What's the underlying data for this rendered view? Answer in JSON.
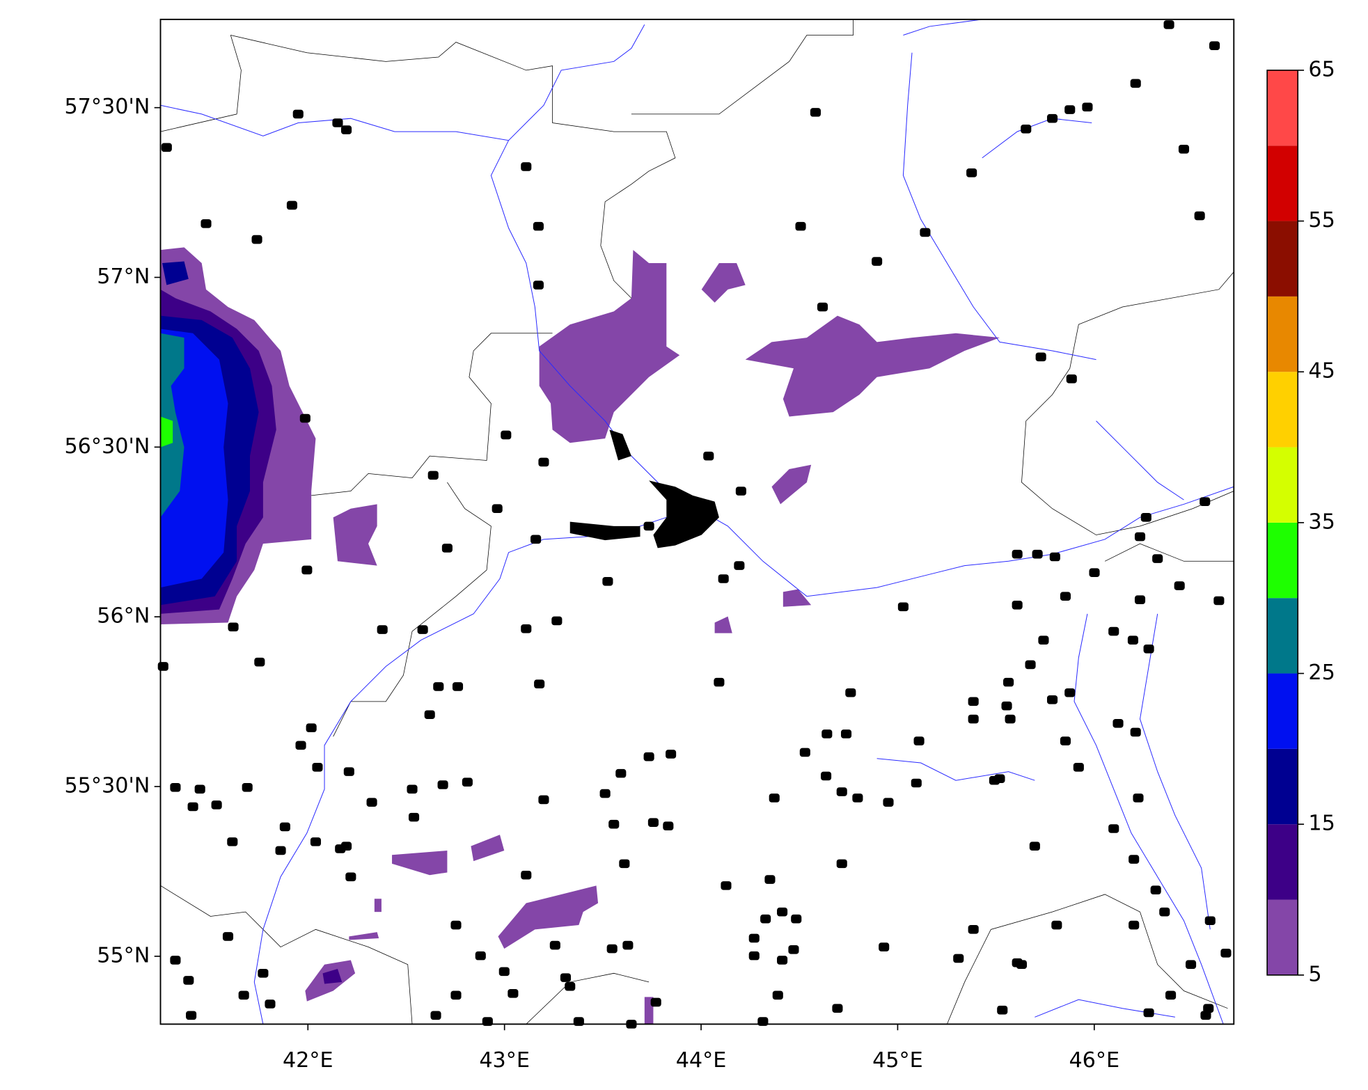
{
  "chart_data": {
    "type": "contour",
    "xlim": [
      41.25,
      46.71
    ],
    "ylim": [
      54.8,
      57.76
    ],
    "xticks": [
      {
        "value": 42,
        "label": "42°E"
      },
      {
        "value": 43,
        "label": "43°E"
      },
      {
        "value": 44,
        "label": "44°E"
      },
      {
        "value": 45,
        "label": "45°E"
      },
      {
        "value": 46,
        "label": "46°E"
      }
    ],
    "yticks": [
      {
        "value": 55,
        "label": "55°N"
      },
      {
        "value": 55.5,
        "label": "55°30'N"
      },
      {
        "value": 56,
        "label": "56°N"
      },
      {
        "value": 56.5,
        "label": "56°30'N"
      },
      {
        "value": 57,
        "label": "57°N"
      },
      {
        "value": 57.5,
        "label": "57°30'N"
      }
    ],
    "colorbar": {
      "levels": [
        5,
        10,
        15,
        20,
        25,
        30,
        35,
        40,
        45,
        50,
        55,
        60,
        65
      ],
      "colors": [
        "#8446a8",
        "#3d0087",
        "#000091",
        "#0010f0",
        "#00788a",
        "#1eff00",
        "#d4ff00",
        "#ffd000",
        "#e88800",
        "#8b0e00",
        "#d20000",
        "#ff4848"
      ],
      "ticks": [
        5,
        15,
        25,
        35,
        45,
        55,
        65
      ]
    }
  }
}
